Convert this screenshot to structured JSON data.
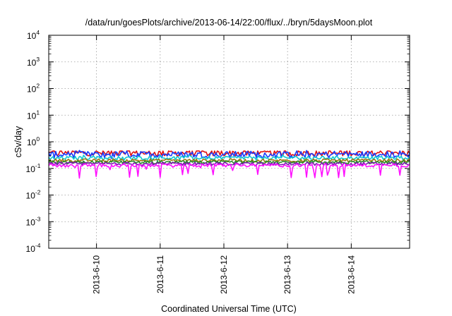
{
  "chart_data": {
    "type": "line",
    "title": "/data/run/goesPlots/archive/2013-06-14/22:00/flux/../bryn/5daysMoon.plot",
    "xlabel": "Coordinated Universal Time (UTC)",
    "ylabel": "cSv/day",
    "yscale": "log",
    "ylim": [
      0.0001,
      10000
    ],
    "xlim": [
      "2013-06-09 06:00",
      "2013-06-14 22:00"
    ],
    "grid": true,
    "legend": "none",
    "x_ticks": [
      "2013-6-10",
      "2013-6-11",
      "2013-6-12",
      "2013-6-13",
      "2013-6-14"
    ],
    "y_ticks": [
      {
        "base": "10",
        "exp": "-4"
      },
      {
        "base": "10",
        "exp": "-3"
      },
      {
        "base": "10",
        "exp": "-2"
      },
      {
        "base": "10",
        "exp": "-1"
      },
      {
        "base": "10",
        "exp": "0"
      },
      {
        "base": "10",
        "exp": "1"
      },
      {
        "base": "10",
        "exp": "2"
      },
      {
        "base": "10",
        "exp": "3"
      },
      {
        "base": "10",
        "exp": "4"
      }
    ],
    "series": [
      {
        "color": "#e01010",
        "typical": 0.38,
        "range": [
          0.3,
          0.45
        ]
      },
      {
        "color": "#1a3cff",
        "typical": 0.34,
        "range": [
          0.22,
          0.48
        ]
      },
      {
        "color": "#10c8d0",
        "typical": 0.25,
        "range": [
          0.18,
          0.32
        ]
      },
      {
        "color": "#9a7a10",
        "typical": 0.2,
        "range": [
          0.17,
          0.23
        ]
      },
      {
        "color": "#2a8a2a",
        "typical": 0.17,
        "range": [
          0.15,
          0.2
        ]
      },
      {
        "color": "#7a1ab0",
        "typical": 0.15,
        "range": [
          0.13,
          0.17
        ]
      },
      {
        "color": "#ff10ff",
        "typical": 0.13,
        "range": [
          0.04,
          0.15
        ]
      }
    ]
  }
}
